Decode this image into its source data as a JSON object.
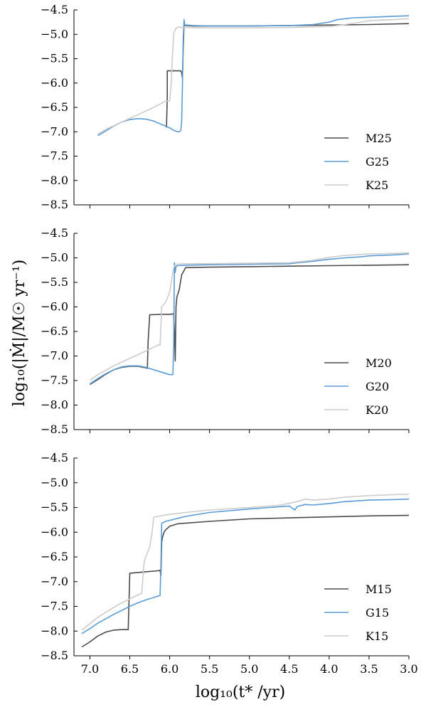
{
  "chart_data": {
    "type": "line",
    "xlabel": "log₁₀(t* /yr)",
    "ylabel": "log₁₀(|Ṁ|/M☉ yr⁻¹)",
    "x_axis": {
      "lim": [
        7.2,
        3.0
      ],
      "ticks": [
        7.0,
        6.5,
        6.0,
        5.5,
        5.0,
        4.5,
        4.0,
        3.5,
        3.0
      ],
      "tick_labels": [
        "7.0",
        "6.5",
        "6.0",
        "5.5",
        "5.0",
        "4.5",
        "4.0",
        "3.5",
        "3.0"
      ],
      "reversed": true
    },
    "y_axis": {
      "lim": [
        -8.5,
        -4.5
      ],
      "ticks": [
        -4.5,
        -5.0,
        -5.5,
        -6.0,
        -6.5,
        -7.0,
        -7.5,
        -8.0,
        -8.5
      ],
      "tick_labels": [
        "−4.5",
        "−5.0",
        "−5.5",
        "−6.0",
        "−6.5",
        "−7.0",
        "−7.5",
        "−8.0",
        "−8.5"
      ]
    },
    "grid": false,
    "legend_position": "lower-right",
    "colors": {
      "M": "#4a4a4a",
      "G": "#5b9bd5",
      "K": "#cccccc"
    },
    "panels": [
      {
        "series": [
          {
            "name": "M25",
            "color": "#4a4a4a",
            "x": [
              6.05,
              6.04,
              6.03,
              6.03,
              5.9,
              5.86,
              5.85,
              5.84,
              5.83,
              5.82,
              5.8,
              5.7,
              5.5,
              5.0,
              4.5,
              4.0,
              3.5,
              3.0
            ],
            "y": [
              -6.9,
              -6.9,
              -6.3,
              -5.75,
              -5.75,
              -5.75,
              -5.78,
              -5.9,
              -5.3,
              -4.8,
              -4.82,
              -4.83,
              -4.83,
              -4.83,
              -4.82,
              -4.81,
              -4.8,
              -4.78
            ]
          },
          {
            "name": "G25",
            "color": "#5b9bd5",
            "x": [
              6.9,
              6.8,
              6.7,
              6.6,
              6.5,
              6.4,
              6.3,
              6.2,
              6.1,
              6.0,
              5.95,
              5.9,
              5.88,
              5.86,
              5.85,
              5.84,
              5.83,
              5.82,
              5.81,
              5.8,
              5.7,
              5.5,
              5.0,
              4.5,
              4.2,
              4.0,
              3.9,
              3.8,
              3.7,
              3.5,
              3.2,
              3.0
            ],
            "y": [
              -7.08,
              -6.98,
              -6.88,
              -6.8,
              -6.75,
              -6.73,
              -6.74,
              -6.78,
              -6.85,
              -6.92,
              -6.97,
              -7.0,
              -7.0,
              -6.97,
              -6.8,
              -6.1,
              -5.1,
              -4.7,
              -4.8,
              -4.81,
              -4.82,
              -4.83,
              -4.83,
              -4.82,
              -4.8,
              -4.75,
              -4.7,
              -4.68,
              -4.66,
              -4.65,
              -4.63,
              -4.62
            ]
          },
          {
            "name": "K25",
            "color": "#cccccc",
            "x": [
              6.9,
              6.8,
              6.6,
              6.4,
              6.2,
              6.05,
              6.0,
              5.98,
              5.97,
              5.96,
              5.95,
              5.93,
              5.9,
              5.85,
              5.8,
              5.5,
              5.0,
              4.5,
              4.0,
              3.8,
              3.6,
              3.5,
              3.2,
              3.0
            ],
            "y": [
              -7.05,
              -6.95,
              -6.8,
              -6.65,
              -6.5,
              -6.37,
              -6.37,
              -6.0,
              -5.6,
              -5.3,
              -5.0,
              -4.9,
              -4.85,
              -4.86,
              -4.86,
              -4.87,
              -4.87,
              -4.86,
              -4.84,
              -4.8,
              -4.75,
              -4.72,
              -4.7,
              -4.68
            ]
          }
        ]
      },
      {
        "series": [
          {
            "name": "M20",
            "color": "#4a4a4a",
            "x": [
              7.0,
              6.9,
              6.8,
              6.7,
              6.6,
              6.5,
              6.4,
              6.3,
              6.28,
              6.27,
              6.25,
              6.1,
              6.0,
              5.95,
              5.94,
              5.93,
              5.92,
              5.91,
              5.9,
              5.88,
              5.85,
              5.8,
              5.5,
              5.0,
              4.5,
              4.0,
              3.5,
              3.0
            ],
            "y": [
              -7.58,
              -7.48,
              -7.37,
              -7.28,
              -7.23,
              -7.21,
              -7.21,
              -7.24,
              -7.25,
              -6.7,
              -6.16,
              -6.15,
              -6.15,
              -6.14,
              -6.5,
              -7.1,
              -6.0,
              -5.8,
              -5.75,
              -5.65,
              -5.35,
              -5.2,
              -5.19,
              -5.18,
              -5.17,
              -5.16,
              -5.15,
              -5.14
            ]
          },
          {
            "name": "G20",
            "color": "#5b9bd5",
            "x": [
              7.0,
              6.9,
              6.8,
              6.7,
              6.6,
              6.5,
              6.4,
              6.3,
              6.2,
              6.1,
              6.0,
              5.96,
              5.95,
              5.94,
              5.93,
              5.92,
              5.9,
              5.8,
              5.5,
              5.0,
              4.5,
              4.4,
              4.2,
              4.0,
              3.8,
              3.6,
              3.5,
              3.2,
              3.0
            ],
            "y": [
              -7.57,
              -7.46,
              -7.36,
              -7.28,
              -7.22,
              -7.2,
              -7.2,
              -7.23,
              -7.28,
              -7.33,
              -7.38,
              -7.38,
              -6.8,
              -5.1,
              -5.3,
              -5.18,
              -5.16,
              -5.15,
              -5.14,
              -5.13,
              -5.12,
              -5.1,
              -5.07,
              -5.03,
              -5.0,
              -4.98,
              -4.96,
              -4.94,
              -4.92
            ]
          },
          {
            "name": "K20",
            "color": "#cccccc",
            "x": [
              7.0,
              6.9,
              6.7,
              6.5,
              6.3,
              6.15,
              6.12,
              6.1,
              6.05,
              6.0,
              5.97,
              5.95,
              5.93,
              5.9,
              5.8,
              5.5,
              5.0,
              4.5,
              4.2,
              4.0,
              3.8,
              3.6,
              3.5,
              3.2,
              3.0
            ],
            "y": [
              -7.5,
              -7.38,
              -7.2,
              -7.05,
              -6.9,
              -6.78,
              -6.78,
              -6.0,
              -5.9,
              -5.7,
              -5.4,
              -5.2,
              -5.15,
              -5.13,
              -5.12,
              -5.12,
              -5.11,
              -5.1,
              -5.05,
              -4.99,
              -4.95,
              -4.93,
              -4.92,
              -4.91,
              -4.9
            ]
          }
        ]
      },
      {
        "series": [
          {
            "name": "M15",
            "color": "#4a4a4a",
            "x": [
              7.1,
              7.0,
              6.9,
              6.8,
              6.7,
              6.6,
              6.55,
              6.52,
              6.51,
              6.5,
              6.3,
              6.15,
              6.12,
              6.11,
              6.1,
              6.09,
              6.07,
              6.05,
              6.0,
              5.9,
              5.5,
              5.0,
              4.5,
              4.0,
              3.5,
              3.0
            ],
            "y": [
              -8.32,
              -8.22,
              -8.1,
              -8.02,
              -7.98,
              -7.97,
              -7.97,
              -7.97,
              -7.4,
              -6.83,
              -6.8,
              -6.78,
              -6.77,
              -6.88,
              -6.2,
              -6.1,
              -6.0,
              -5.95,
              -5.88,
              -5.83,
              -5.78,
              -5.73,
              -5.71,
              -5.69,
              -5.67,
              -5.66
            ]
          },
          {
            "name": "G15",
            "color": "#5b9bd5",
            "x": [
              7.1,
              7.0,
              6.9,
              6.8,
              6.7,
              6.6,
              6.5,
              6.4,
              6.3,
              6.2,
              6.12,
              6.11,
              6.1,
              6.05,
              6.0,
              5.8,
              5.5,
              5.0,
              4.5,
              4.43,
              4.4,
              4.3,
              4.2,
              4.0,
              3.8,
              3.6,
              3.5,
              3.2,
              3.0
            ],
            "y": [
              -8.05,
              -7.95,
              -7.84,
              -7.75,
              -7.66,
              -7.58,
              -7.5,
              -7.43,
              -7.37,
              -7.32,
              -7.28,
              -6.7,
              -5.82,
              -5.78,
              -5.76,
              -5.68,
              -5.6,
              -5.53,
              -5.47,
              -5.55,
              -5.48,
              -5.44,
              -5.45,
              -5.42,
              -5.38,
              -5.36,
              -5.35,
              -5.34,
              -5.33
            ]
          },
          {
            "name": "K15",
            "color": "#cccccc",
            "x": [
              7.1,
              7.0,
              6.9,
              6.8,
              6.7,
              6.6,
              6.5,
              6.4,
              6.35,
              6.32,
              6.3,
              6.25,
              6.22,
              6.2,
              6.15,
              6.0,
              5.8,
              5.5,
              5.0,
              4.6,
              4.4,
              4.3,
              4.2,
              4.0,
              3.8,
              3.6,
              3.5,
              3.2,
              3.0
            ],
            "y": [
              -7.98,
              -7.85,
              -7.72,
              -7.62,
              -7.52,
              -7.43,
              -7.35,
              -7.27,
              -7.24,
              -6.6,
              -6.5,
              -6.3,
              -6.0,
              -5.7,
              -5.68,
              -5.64,
              -5.6,
              -5.55,
              -5.5,
              -5.45,
              -5.38,
              -5.33,
              -5.35,
              -5.33,
              -5.29,
              -5.27,
              -5.26,
              -5.24,
              -5.23
            ]
          }
        ]
      }
    ]
  }
}
